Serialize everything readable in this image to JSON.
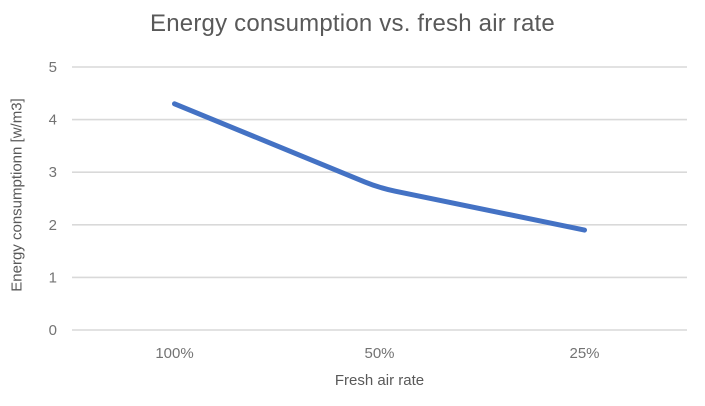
{
  "chart_data": {
    "type": "line",
    "title": "Energy consumption vs. fresh air rate",
    "xlabel": "Fresh air rate",
    "ylabel": "Energy consumptionn [w/m3]",
    "categories": [
      "100%",
      "50%",
      "25%"
    ],
    "values": [
      4.3,
      2.7,
      1.9
    ],
    "ylim": [
      0,
      5
    ],
    "yticks": [
      0,
      1,
      2,
      3,
      4,
      5
    ],
    "grid": "horizontal-only",
    "legend_position": "none",
    "colors": {
      "line": "#4472C4",
      "gridline": "#D9D9D9",
      "title_text": "#595959",
      "tick_text": "#737373"
    }
  }
}
